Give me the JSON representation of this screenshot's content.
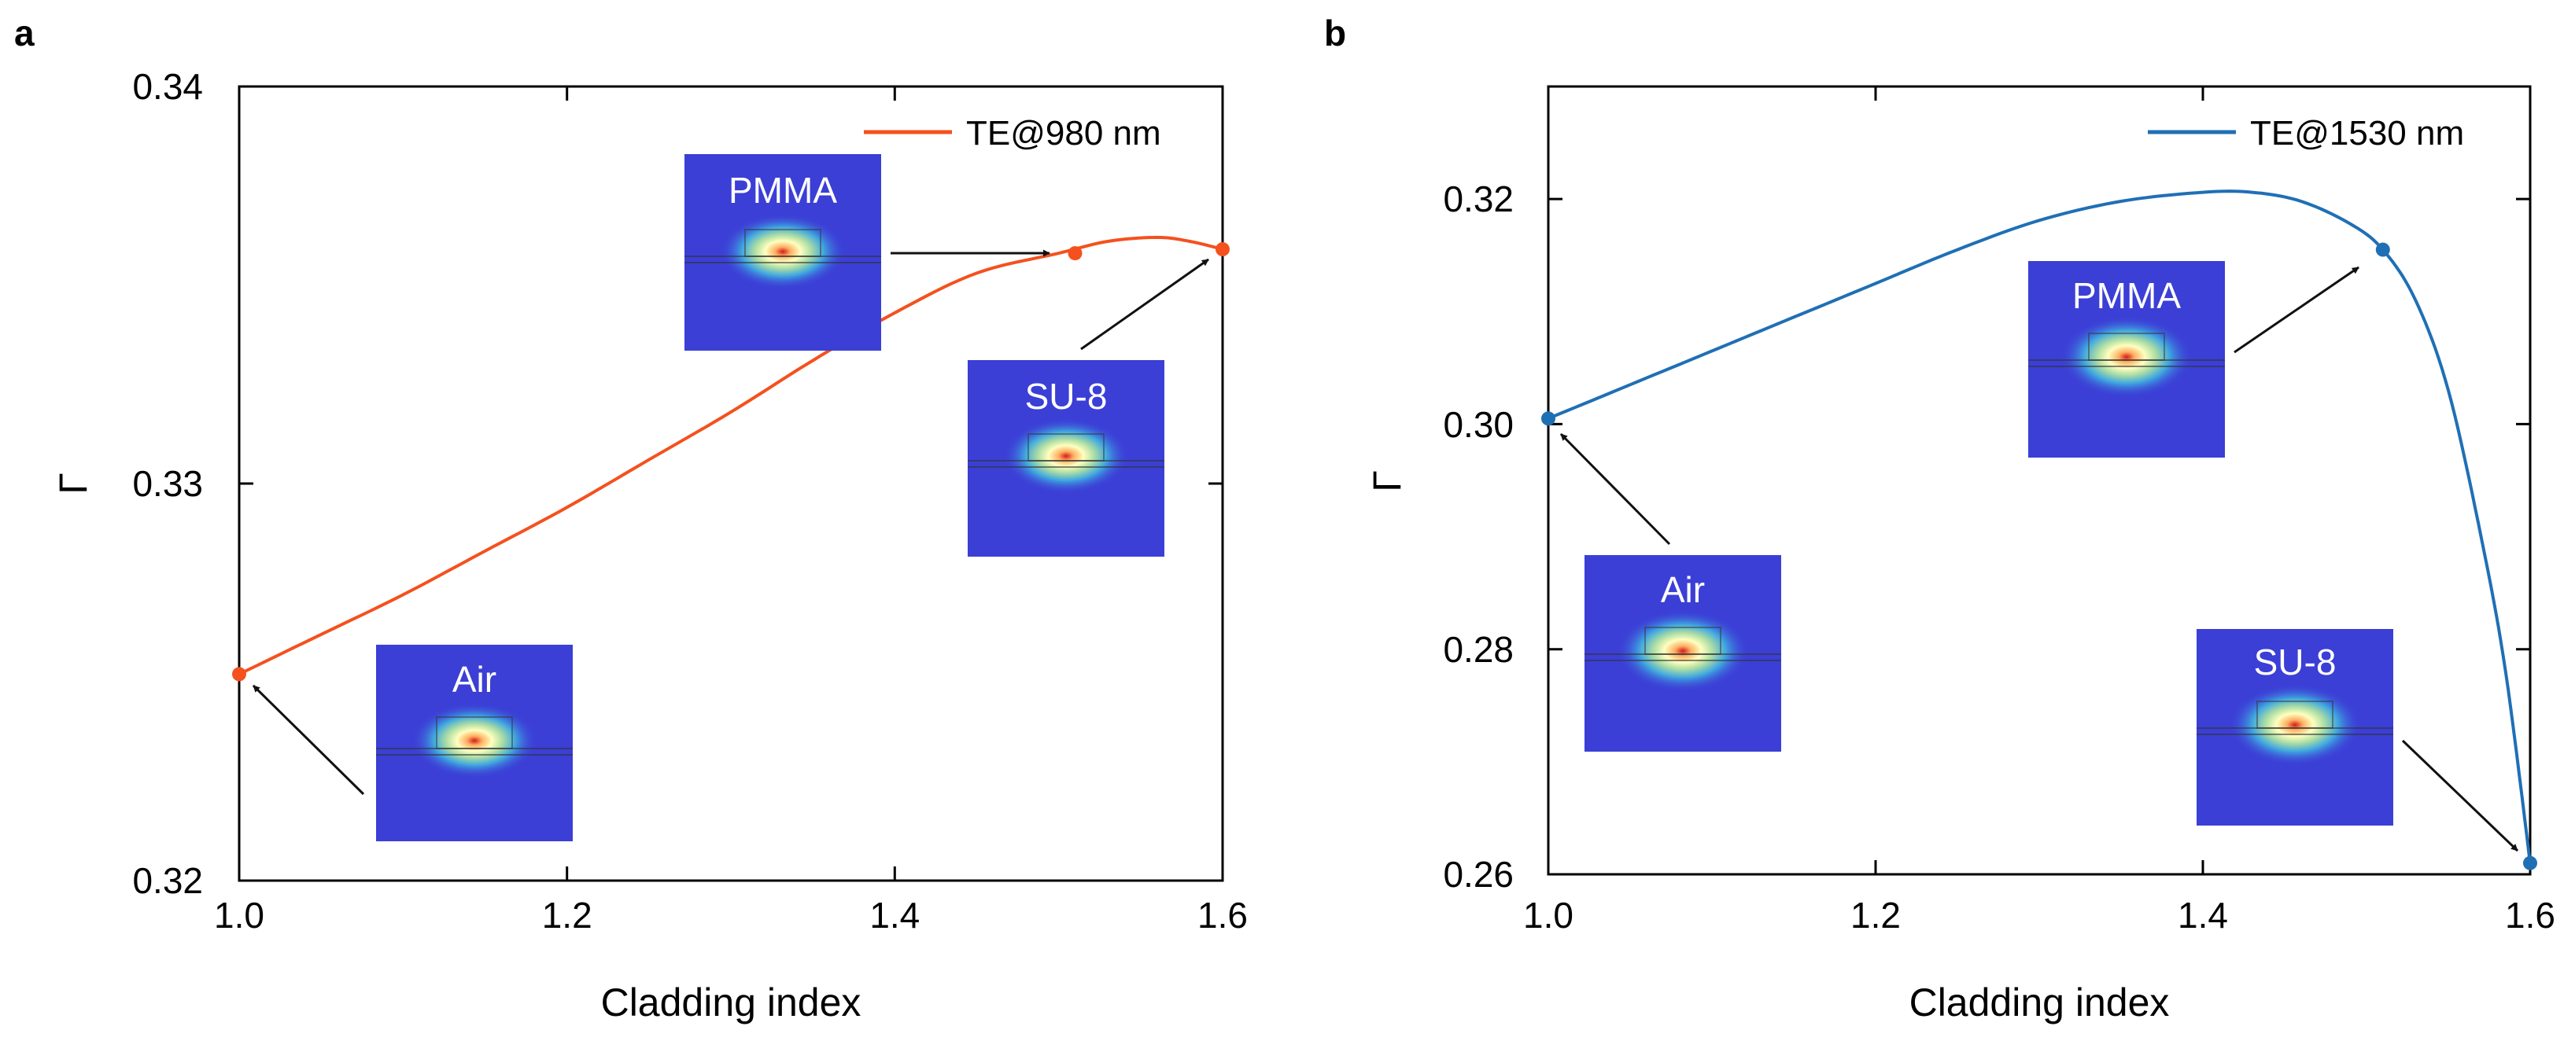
{
  "chart_data": [
    {
      "panel_label": "a",
      "type": "line",
      "xlabel": "Cladding index",
      "ylabel": "Γ",
      "xlim": [
        1.0,
        1.6
      ],
      "ylim": [
        0.32,
        0.34
      ],
      "xticks": [
        "1.0",
        "1.2",
        "1.4",
        "1.6"
      ],
      "yticks": [
        "0.32",
        "0.33",
        "0.34"
      ],
      "legend": "top-right",
      "series": [
        {
          "name": "TE@980 nm",
          "color": "#f4511e",
          "x": [
            1.0,
            1.05,
            1.1,
            1.15,
            1.2,
            1.25,
            1.3,
            1.35,
            1.4,
            1.45,
            1.5,
            1.53,
            1.56,
            1.58,
            1.6
          ],
          "y": [
            0.3252,
            0.3262,
            0.3272,
            0.3283,
            0.3294,
            0.3306,
            0.3318,
            0.3331,
            0.3343,
            0.3353,
            0.3358,
            0.3361,
            0.3362,
            0.3361,
            0.3359
          ]
        }
      ],
      "markers": [
        {
          "x": 1.0,
          "y": 0.3252,
          "label": "Air"
        },
        {
          "x": 1.51,
          "y": 0.3358,
          "label": "PMMA"
        },
        {
          "x": 1.6,
          "y": 0.3359,
          "label": "SU-8"
        }
      ]
    },
    {
      "panel_label": "b",
      "type": "line",
      "xlabel": "Cladding index",
      "ylabel": "Γ",
      "xlim": [
        1.0,
        1.6
      ],
      "ylim": [
        0.26,
        0.33
      ],
      "xticks": [
        "1.0",
        "1.2",
        "1.4",
        "1.6"
      ],
      "yticks": [
        "0.26",
        "0.28",
        "0.30",
        "0.32"
      ],
      "legend": "top-right",
      "series": [
        {
          "name": "TE@1530 nm",
          "color": "#1f6fb5",
          "x": [
            1.0,
            1.05,
            1.1,
            1.15,
            1.2,
            1.25,
            1.3,
            1.35,
            1.4,
            1.43,
            1.46,
            1.49,
            1.51,
            1.53,
            1.55,
            1.57,
            1.585,
            1.6
          ],
          "y": [
            0.3005,
            0.3035,
            0.3065,
            0.3095,
            0.3125,
            0.3155,
            0.3181,
            0.3198,
            0.3206,
            0.3206,
            0.3198,
            0.3178,
            0.3155,
            0.311,
            0.303,
            0.29,
            0.278,
            0.261
          ]
        }
      ],
      "markers": [
        {
          "x": 1.0,
          "y": 0.3005,
          "label": "Air"
        },
        {
          "x": 1.51,
          "y": 0.3155,
          "label": "PMMA"
        },
        {
          "x": 1.6,
          "y": 0.261,
          "label": "SU-8"
        }
      ]
    }
  ]
}
